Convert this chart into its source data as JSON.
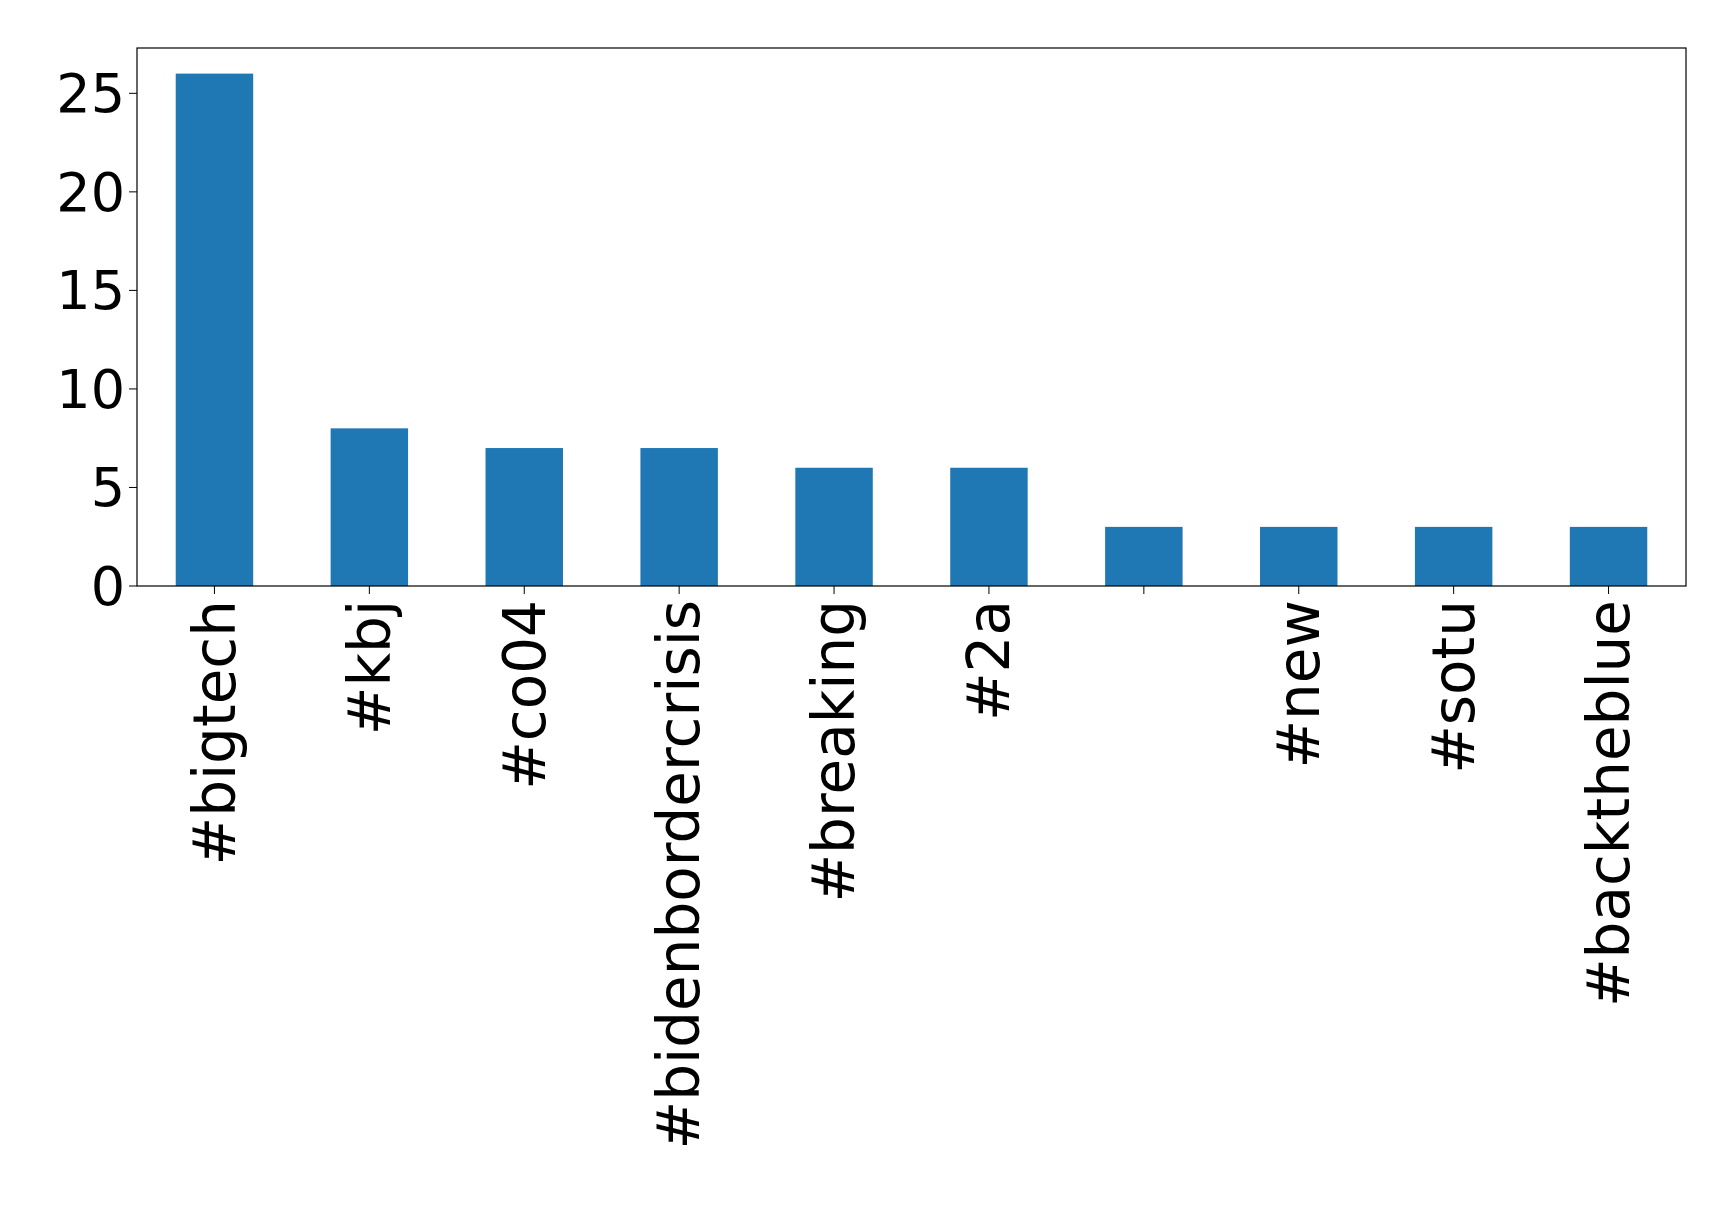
{
  "chart_data": {
    "type": "bar",
    "categories": [
      "#bigtech",
      "#kbj",
      "#co04",
      "#bidenbordercrisis",
      "#breaking",
      "#2a",
      null,
      "#new",
      "#sotu",
      "#backtheblue"
    ],
    "values": [
      26,
      8,
      7,
      7,
      6,
      6,
      3,
      3,
      3,
      3
    ],
    "color": "#1f77b4",
    "ylim": [
      0,
      27.3
    ],
    "yticks": [
      0,
      5,
      10,
      15,
      20,
      25
    ],
    "grid": false
  }
}
